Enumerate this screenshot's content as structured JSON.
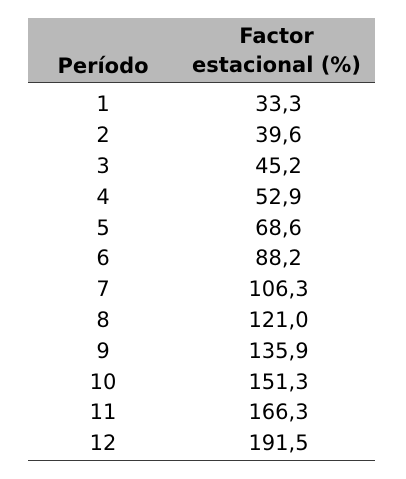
{
  "table": {
    "header": {
      "periodo": "Período",
      "factor_line1": "Factor",
      "factor_line2": "estacional (%)"
    },
    "rows": [
      {
        "periodo": "1",
        "factor": "33,3"
      },
      {
        "periodo": "2",
        "factor": "39,6"
      },
      {
        "periodo": "3",
        "factor": "45,2"
      },
      {
        "periodo": "4",
        "factor": "52,9"
      },
      {
        "periodo": "5",
        "factor": "68,6"
      },
      {
        "periodo": "6",
        "factor": "88,2"
      },
      {
        "periodo": "7",
        "factor": "106,3"
      },
      {
        "periodo": "8",
        "factor": "121,0"
      },
      {
        "periodo": "9",
        "factor": "135,9"
      },
      {
        "periodo": "10",
        "factor": "151,3"
      },
      {
        "periodo": "11",
        "factor": "166,3"
      },
      {
        "periodo": "12",
        "factor": "191,5"
      }
    ]
  }
}
